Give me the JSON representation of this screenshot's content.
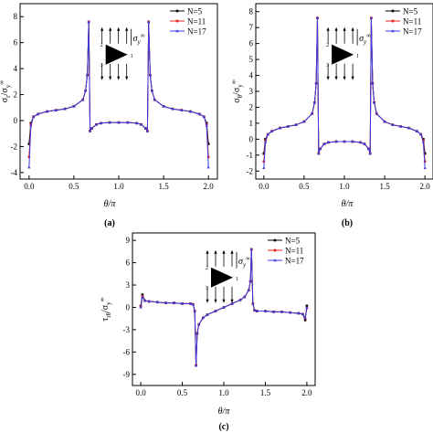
{
  "chart_data": [
    {
      "panel_label": "(a)",
      "type": "line",
      "ylabel": "σ_r/σ_y^∞",
      "xlabel": "θ/π",
      "xlim": [
        -0.1,
        2.1
      ],
      "ylim": [
        -4.5,
        9
      ],
      "xticks": [
        "0.0",
        "0.5",
        "1.0",
        "1.5",
        "2.0"
      ],
      "yticks": [
        "-4",
        "-2",
        "0",
        "2",
        "4",
        "6",
        "8"
      ],
      "legend_position": "top-right",
      "inset_label": "σ_y^∞",
      "triangle_vertices": [
        "1",
        "2",
        "3"
      ],
      "series": [
        {
          "name": "N=5",
          "color": "#000000",
          "marker": "square",
          "x": [
            0.0,
            0.02,
            0.05,
            0.1,
            0.2,
            0.3,
            0.4,
            0.5,
            0.6,
            0.63,
            0.65,
            0.666,
            0.68,
            0.7,
            0.75,
            0.8,
            0.9,
            1.0,
            1.1,
            1.2,
            1.25,
            1.3,
            1.32,
            1.333,
            1.35,
            1.37,
            1.4,
            1.5,
            1.6,
            1.7,
            1.8,
            1.9,
            1.95,
            1.98,
            2.0
          ],
          "y": [
            -1.8,
            -0.2,
            0.3,
            0.5,
            0.7,
            0.8,
            0.9,
            1.1,
            1.6,
            2.3,
            3.5,
            7.6,
            -0.8,
            -0.6,
            -0.3,
            -0.2,
            -0.15,
            -0.15,
            -0.15,
            -0.2,
            -0.3,
            -0.6,
            -0.8,
            7.6,
            3.5,
            2.3,
            1.6,
            1.1,
            0.9,
            0.8,
            0.7,
            0.5,
            0.3,
            -0.2,
            -1.8
          ]
        },
        {
          "name": "N=11",
          "color": "#e8201c",
          "marker": "circle",
          "x": [
            0.0,
            0.02,
            0.05,
            0.1,
            0.2,
            0.3,
            0.4,
            0.5,
            0.6,
            0.63,
            0.65,
            0.666,
            0.68,
            0.7,
            0.75,
            0.8,
            0.9,
            1.0,
            1.1,
            1.2,
            1.25,
            1.3,
            1.32,
            1.333,
            1.35,
            1.37,
            1.4,
            1.5,
            1.6,
            1.7,
            1.8,
            1.9,
            1.95,
            1.98,
            2.0
          ],
          "y": [
            -2.8,
            -0.3,
            0.3,
            0.5,
            0.7,
            0.8,
            0.9,
            1.1,
            1.6,
            2.3,
            3.5,
            7.6,
            -0.8,
            -0.6,
            -0.3,
            -0.2,
            -0.15,
            -0.15,
            -0.15,
            -0.2,
            -0.3,
            -0.6,
            -0.8,
            7.6,
            3.5,
            2.3,
            1.6,
            1.1,
            0.9,
            0.8,
            0.7,
            0.5,
            0.3,
            -0.3,
            -2.8
          ]
        },
        {
          "name": "N=17",
          "color": "#3a3ae0",
          "marker": "triangle",
          "x": [
            0.0,
            0.02,
            0.05,
            0.1,
            0.2,
            0.3,
            0.4,
            0.5,
            0.6,
            0.63,
            0.65,
            0.666,
            0.68,
            0.7,
            0.75,
            0.8,
            0.9,
            1.0,
            1.1,
            1.2,
            1.25,
            1.3,
            1.32,
            1.333,
            1.35,
            1.37,
            1.4,
            1.5,
            1.6,
            1.7,
            1.8,
            1.9,
            1.95,
            1.98,
            2.0
          ],
          "y": [
            -3.6,
            -0.4,
            0.3,
            0.5,
            0.7,
            0.8,
            0.9,
            1.1,
            1.6,
            2.3,
            3.5,
            7.6,
            -0.8,
            -0.6,
            -0.3,
            -0.2,
            -0.15,
            -0.15,
            -0.15,
            -0.2,
            -0.3,
            -0.6,
            -0.8,
            7.6,
            3.5,
            2.3,
            1.6,
            1.1,
            0.9,
            0.8,
            0.7,
            0.5,
            0.3,
            -0.4,
            -3.6
          ]
        }
      ]
    },
    {
      "panel_label": "(b)",
      "type": "line",
      "ylabel": "σ_θ/σ_y^∞",
      "xlabel": "θ/π",
      "xlim": [
        -0.1,
        2.1
      ],
      "ylim": [
        -2.5,
        8.5
      ],
      "xticks": [
        "0.0",
        "0.5",
        "1.0",
        "1.5",
        "2.0"
      ],
      "yticks": [
        "-2",
        "-1",
        "0",
        "1",
        "2",
        "3",
        "4",
        "5",
        "6",
        "7",
        "8"
      ],
      "legend_position": "top-right",
      "inset_label": "σ_y^∞",
      "triangle_vertices": [
        "1",
        "2",
        "3"
      ],
      "series": [
        {
          "name": "N=5",
          "color": "#000000",
          "marker": "square",
          "x": [
            0.0,
            0.02,
            0.05,
            0.1,
            0.2,
            0.3,
            0.4,
            0.5,
            0.6,
            0.63,
            0.65,
            0.666,
            0.68,
            0.7,
            0.75,
            0.8,
            0.9,
            1.0,
            1.1,
            1.2,
            1.25,
            1.3,
            1.32,
            1.333,
            1.35,
            1.37,
            1.4,
            1.5,
            1.6,
            1.7,
            1.8,
            1.9,
            1.95,
            1.98,
            2.0
          ],
          "y": [
            -0.9,
            0.0,
            0.3,
            0.5,
            0.7,
            0.8,
            0.9,
            1.1,
            1.6,
            2.3,
            3.5,
            7.6,
            -0.9,
            -0.6,
            -0.3,
            -0.2,
            -0.15,
            -0.15,
            -0.15,
            -0.2,
            -0.3,
            -0.6,
            -0.9,
            7.6,
            3.5,
            2.3,
            1.6,
            1.1,
            0.9,
            0.8,
            0.7,
            0.5,
            0.3,
            0.0,
            -0.9
          ]
        },
        {
          "name": "N=11",
          "color": "#e8201c",
          "marker": "circle",
          "x": [
            0.0,
            0.02,
            0.05,
            0.1,
            0.2,
            0.3,
            0.4,
            0.5,
            0.6,
            0.63,
            0.65,
            0.666,
            0.68,
            0.7,
            0.75,
            0.8,
            0.9,
            1.0,
            1.1,
            1.2,
            1.25,
            1.3,
            1.32,
            1.333,
            1.35,
            1.37,
            1.4,
            1.5,
            1.6,
            1.7,
            1.8,
            1.9,
            1.95,
            1.98,
            2.0
          ],
          "y": [
            -1.4,
            -0.1,
            0.3,
            0.5,
            0.7,
            0.8,
            0.9,
            1.1,
            1.6,
            2.3,
            3.5,
            7.6,
            -0.9,
            -0.6,
            -0.3,
            -0.2,
            -0.15,
            -0.15,
            -0.15,
            -0.2,
            -0.3,
            -0.6,
            -0.9,
            7.6,
            3.5,
            2.3,
            1.6,
            1.1,
            0.9,
            0.8,
            0.7,
            0.5,
            0.3,
            -0.1,
            -1.4
          ]
        },
        {
          "name": "N=17",
          "color": "#3a3ae0",
          "marker": "triangle",
          "x": [
            0.0,
            0.02,
            0.05,
            0.1,
            0.2,
            0.3,
            0.4,
            0.5,
            0.6,
            0.63,
            0.65,
            0.666,
            0.68,
            0.7,
            0.75,
            0.8,
            0.9,
            1.0,
            1.1,
            1.2,
            1.25,
            1.3,
            1.32,
            1.333,
            1.35,
            1.37,
            1.4,
            1.5,
            1.6,
            1.7,
            1.8,
            1.9,
            1.95,
            1.98,
            2.0
          ],
          "y": [
            -1.8,
            -0.2,
            0.3,
            0.5,
            0.7,
            0.8,
            0.9,
            1.1,
            1.6,
            2.3,
            3.5,
            7.6,
            -0.9,
            -0.6,
            -0.3,
            -0.2,
            -0.15,
            -0.15,
            -0.15,
            -0.2,
            -0.3,
            -0.6,
            -0.9,
            7.6,
            3.5,
            2.3,
            1.6,
            1.1,
            0.9,
            0.8,
            0.7,
            0.5,
            0.3,
            -0.2,
            -1.8
          ]
        }
      ]
    },
    {
      "panel_label": "(c)",
      "type": "line",
      "ylabel": "τ_rθ/σ_y^∞",
      "xlabel": "θ/π",
      "xlim": [
        -0.1,
        2.1
      ],
      "ylim": [
        -10.5,
        10
      ],
      "xticks": [
        "0.0",
        "0.5",
        "1.0",
        "1.5",
        "2.0"
      ],
      "yticks": [
        "-9",
        "-6",
        "-3",
        "0",
        "3",
        "6",
        "9"
      ],
      "legend_position": "top-right",
      "inset_label": "σ_y^∞",
      "triangle_vertices": [
        "1",
        "2",
        "3"
      ],
      "series": [
        {
          "name": "N=5",
          "color": "#000000",
          "marker": "square",
          "x": [
            0.0,
            0.02,
            0.05,
            0.1,
            0.2,
            0.3,
            0.4,
            0.5,
            0.6,
            0.63,
            0.65,
            0.666,
            0.68,
            0.7,
            0.75,
            0.8,
            0.9,
            1.0,
            1.1,
            1.2,
            1.25,
            1.3,
            1.32,
            1.333,
            1.35,
            1.37,
            1.4,
            1.5,
            1.6,
            1.7,
            1.8,
            1.9,
            1.95,
            1.98,
            2.0
          ],
          "y": [
            0.2,
            1.7,
            0.9,
            0.8,
            0.7,
            0.6,
            0.6,
            0.5,
            0.5,
            0.4,
            -0.5,
            -7.8,
            -3.5,
            -2.3,
            -1.4,
            -1.0,
            -0.5,
            0.0,
            0.5,
            1.0,
            1.4,
            2.3,
            3.5,
            7.8,
            0.5,
            -0.4,
            -0.5,
            -0.5,
            -0.6,
            -0.6,
            -0.7,
            -0.8,
            -0.9,
            -1.7,
            0.2
          ]
        },
        {
          "name": "N=11",
          "color": "#e8201c",
          "marker": "circle",
          "x": [
            0.0,
            0.02,
            0.05,
            0.1,
            0.2,
            0.3,
            0.4,
            0.5,
            0.6,
            0.63,
            0.65,
            0.666,
            0.68,
            0.7,
            0.75,
            0.8,
            0.9,
            1.0,
            1.1,
            1.2,
            1.25,
            1.3,
            1.32,
            1.333,
            1.35,
            1.37,
            1.4,
            1.5,
            1.6,
            1.7,
            1.8,
            1.9,
            1.95,
            1.98,
            2.0
          ],
          "y": [
            0.1,
            1.5,
            0.9,
            0.8,
            0.7,
            0.6,
            0.6,
            0.5,
            0.5,
            0.4,
            -0.5,
            -7.8,
            -3.5,
            -2.3,
            -1.4,
            -1.0,
            -0.5,
            0.0,
            0.5,
            1.0,
            1.4,
            2.3,
            3.5,
            7.8,
            0.5,
            -0.4,
            -0.5,
            -0.5,
            -0.6,
            -0.6,
            -0.7,
            -0.8,
            -0.9,
            -1.5,
            -0.1
          ]
        },
        {
          "name": "N=17",
          "color": "#3a3ae0",
          "marker": "triangle",
          "x": [
            0.0,
            0.02,
            0.05,
            0.1,
            0.2,
            0.3,
            0.4,
            0.5,
            0.6,
            0.63,
            0.65,
            0.666,
            0.68,
            0.7,
            0.75,
            0.8,
            0.9,
            1.0,
            1.1,
            1.2,
            1.25,
            1.3,
            1.32,
            1.333,
            1.35,
            1.37,
            1.4,
            1.5,
            1.6,
            1.7,
            1.8,
            1.9,
            1.95,
            1.98,
            2.0
          ],
          "y": [
            0.0,
            1.4,
            0.9,
            0.8,
            0.7,
            0.6,
            0.6,
            0.5,
            0.5,
            0.4,
            -0.5,
            -7.8,
            -3.5,
            -2.3,
            -1.4,
            -1.0,
            -0.5,
            0.0,
            0.5,
            1.0,
            1.4,
            2.3,
            3.5,
            7.8,
            0.5,
            -0.4,
            -0.5,
            -0.5,
            -0.6,
            -0.6,
            -0.7,
            -0.8,
            -0.9,
            -1.4,
            0.0
          ]
        }
      ]
    }
  ]
}
